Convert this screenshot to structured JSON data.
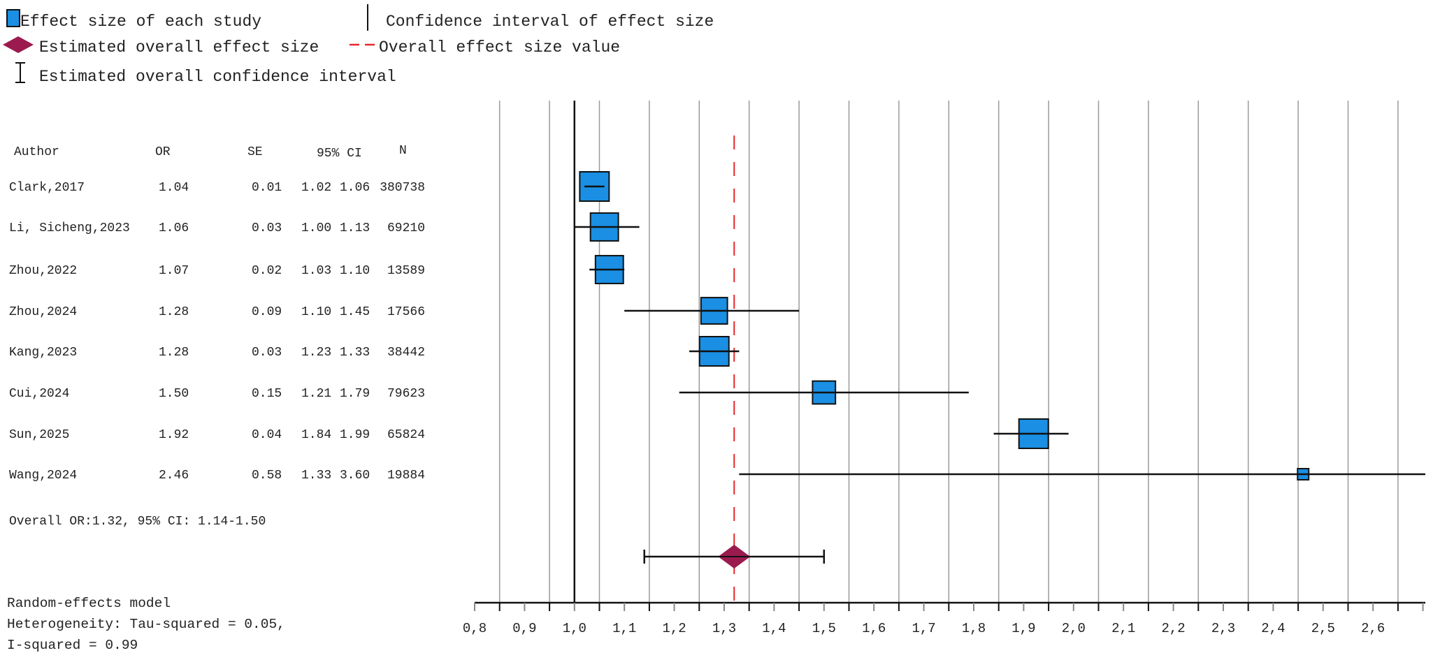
{
  "legend": {
    "study_effect": "Effect size of each study",
    "ci_effect": "Confidence interval of effect size",
    "overall_effect": "Estimated overall effect size",
    "overall_value": "Overall effect size value",
    "overall_ci": "Estimated overall confidence interval"
  },
  "colors": {
    "box": "#1a8fe3",
    "diamond": "#9b1b4f",
    "dashed": "#e8262a",
    "grid": "#9a9a9a"
  },
  "table": {
    "headers": {
      "author": "Author",
      "or": "OR",
      "se": "SE",
      "ci": "95% CI",
      "n": "N"
    },
    "rows": [
      {
        "author": "Clark,2017",
        "or": "1.04",
        "se": "0.01",
        "lo": "1.02",
        "hi": "1.06",
        "n": "380738"
      },
      {
        "author": "Li, Sicheng,2023",
        "or": "1.06",
        "se": "0.03",
        "lo": "1.00",
        "hi": "1.13",
        "n": "69210"
      },
      {
        "author": "Zhou,2022",
        "or": "1.07",
        "se": "0.02",
        "lo": "1.03",
        "hi": "1.10",
        "n": "13589"
      },
      {
        "author": "Zhou,2024",
        "or": "1.28",
        "se": "0.09",
        "lo": "1.10",
        "hi": "1.45",
        "n": "17566"
      },
      {
        "author": "Kang,2023",
        "or": "1.28",
        "se": "0.03",
        "lo": "1.23",
        "hi": "1.33",
        "n": "38442"
      },
      {
        "author": "Cui,2024",
        "or": "1.50",
        "se": "0.15",
        "lo": "1.21",
        "hi": "1.79",
        "n": "79623"
      },
      {
        "author": "Sun,2025",
        "or": "1.92",
        "se": "0.04",
        "lo": "1.84",
        "hi": "1.99",
        "n": "65824"
      },
      {
        "author": "Wang,2024",
        "or": "2.46",
        "se": "0.58",
        "lo": "1.33",
        "hi": "3.60",
        "n": "19884"
      }
    ],
    "overall_text": "Overall OR:1.32, 95% CI: 1.14-1.50"
  },
  "footer": {
    "model": "Random-effects model",
    "heterogeneity": "Heterogeneity: Tau-squared = 0.05,",
    "i_squared": "I-squared = 0.99"
  },
  "chart_data": {
    "type": "forest",
    "x_range": [
      0.8,
      2.7
    ],
    "null_line": 1.0,
    "tick_labels": [
      "0,8",
      "0,9",
      "1,0",
      "1,1",
      "1,2",
      "1,3",
      "1,4",
      "1,5",
      "1,6",
      "1,7",
      "1,8",
      "1,9",
      "2,0",
      "2,1",
      "2,2",
      "2,3",
      "2,4",
      "2,5",
      "2,6"
    ],
    "tick_values": [
      0.8,
      0.9,
      1.0,
      1.1,
      1.2,
      1.3,
      1.4,
      1.5,
      1.6,
      1.7,
      1.8,
      1.9,
      2.0,
      2.1,
      2.2,
      2.3,
      2.4,
      2.5,
      2.6
    ],
    "studies": [
      {
        "name": "Clark,2017",
        "or": 1.04,
        "lo": 1.02,
        "hi": 1.06,
        "rel_weight": 1.0
      },
      {
        "name": "Li, Sicheng,2023",
        "or": 1.06,
        "lo": 1.0,
        "hi": 1.13,
        "rel_weight": 0.95
      },
      {
        "name": "Zhou,2022",
        "or": 1.07,
        "lo": 1.03,
        "hi": 1.1,
        "rel_weight": 0.95
      },
      {
        "name": "Zhou,2024",
        "or": 1.28,
        "lo": 1.1,
        "hi": 1.45,
        "rel_weight": 0.9
      },
      {
        "name": "Kang,2023",
        "or": 1.28,
        "lo": 1.23,
        "hi": 1.33,
        "rel_weight": 1.0
      },
      {
        "name": "Cui,2024",
        "or": 1.5,
        "lo": 1.21,
        "hi": 1.79,
        "rel_weight": 0.78
      },
      {
        "name": "Sun,2025",
        "or": 1.92,
        "lo": 1.84,
        "hi": 1.99,
        "rel_weight": 1.0
      },
      {
        "name": "Wang,2024",
        "or": 2.46,
        "lo": 1.33,
        "hi": 3.6,
        "rel_weight": 0.38
      }
    ],
    "overall": {
      "or": 1.32,
      "lo": 1.14,
      "hi": 1.5
    }
  }
}
